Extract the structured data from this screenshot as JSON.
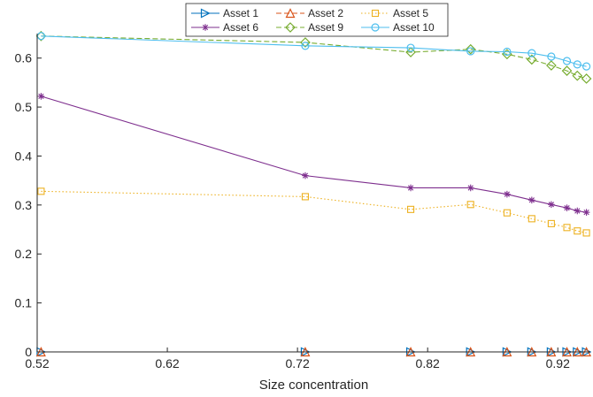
{
  "chart_data": {
    "type": "line",
    "title": "",
    "xlabel": "Size concentration",
    "ylabel": "",
    "xlim": [
      0.52,
      0.945
    ],
    "ylim": [
      0,
      0.65
    ],
    "xticks": [
      0.52,
      0.62,
      0.72,
      0.82,
      0.92
    ],
    "xtick_labels": [
      "0.52",
      "0.62",
      "0.72",
      "0.82",
      "0.92"
    ],
    "yticks": [
      0,
      0.1,
      0.2,
      0.3,
      0.4,
      0.5,
      0.6
    ],
    "ytick_labels": [
      "0",
      "0.1",
      "0.2",
      "0.3",
      "0.4",
      "0.5",
      "0.6"
    ],
    "grid": false,
    "legend_position": "top-center",
    "x": [
      0.523,
      0.726,
      0.807,
      0.853,
      0.881,
      0.9,
      0.915,
      0.927,
      0.935,
      0.942
    ],
    "series": [
      {
        "name": "Asset 1",
        "color": "#0072BD",
        "marker": "triangle-right",
        "dash": "solid",
        "values": [
          0,
          0,
          0,
          0,
          0,
          0,
          0,
          0,
          0,
          0
        ]
      },
      {
        "name": "Asset 2",
        "color": "#D95319",
        "marker": "triangle-up",
        "dash": "dashed",
        "values": [
          0,
          0,
          0,
          0,
          0,
          0,
          0,
          0,
          0,
          0
        ]
      },
      {
        "name": "Asset 5",
        "color": "#EDB120",
        "marker": "square",
        "dash": "dotted",
        "values": [
          0.328,
          0.317,
          0.291,
          0.301,
          0.284,
          0.272,
          0.262,
          0.254,
          0.247,
          0.243
        ]
      },
      {
        "name": "Asset 6",
        "color": "#7E2F8E",
        "marker": "asterisk",
        "dash": "solid",
        "values": [
          0.522,
          0.36,
          0.335,
          0.335,
          0.322,
          0.31,
          0.301,
          0.294,
          0.288,
          0.285
        ]
      },
      {
        "name": "Asset 9",
        "color": "#77AC30",
        "marker": "diamond",
        "dash": "dashed",
        "values": [
          0.645,
          0.632,
          0.612,
          0.618,
          0.608,
          0.597,
          0.585,
          0.574,
          0.564,
          0.558
        ]
      },
      {
        "name": "Asset 10",
        "color": "#4DBEEE",
        "marker": "circle",
        "dash": "solid",
        "values": [
          0.645,
          0.625,
          0.621,
          0.614,
          0.613,
          0.61,
          0.603,
          0.594,
          0.587,
          0.583
        ]
      }
    ]
  }
}
